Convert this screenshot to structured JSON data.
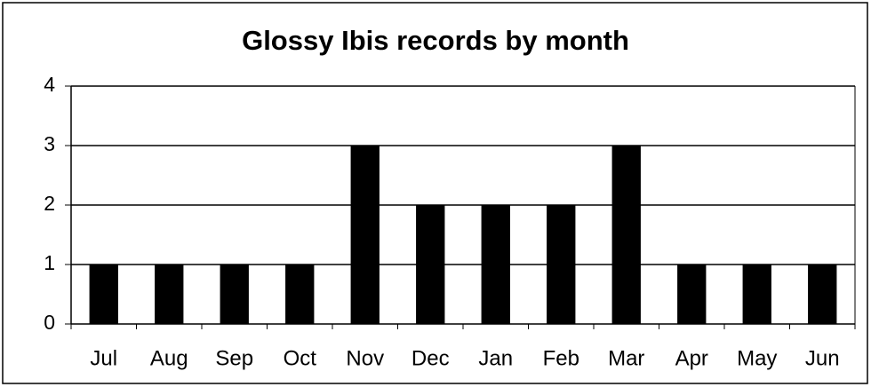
{
  "chart_data": {
    "type": "bar",
    "title": "Glossy Ibis records by month",
    "categories": [
      "Jul",
      "Aug",
      "Sep",
      "Oct",
      "Nov",
      "Dec",
      "Jan",
      "Feb",
      "Mar",
      "Apr",
      "May",
      "Jun"
    ],
    "values": [
      1,
      1,
      1,
      1,
      3,
      2,
      2,
      2,
      3,
      1,
      1,
      1
    ],
    "color": "#000000",
    "ylim": [
      0,
      4
    ],
    "yticks": [
      0,
      1,
      2,
      3,
      4
    ],
    "grid": true
  }
}
